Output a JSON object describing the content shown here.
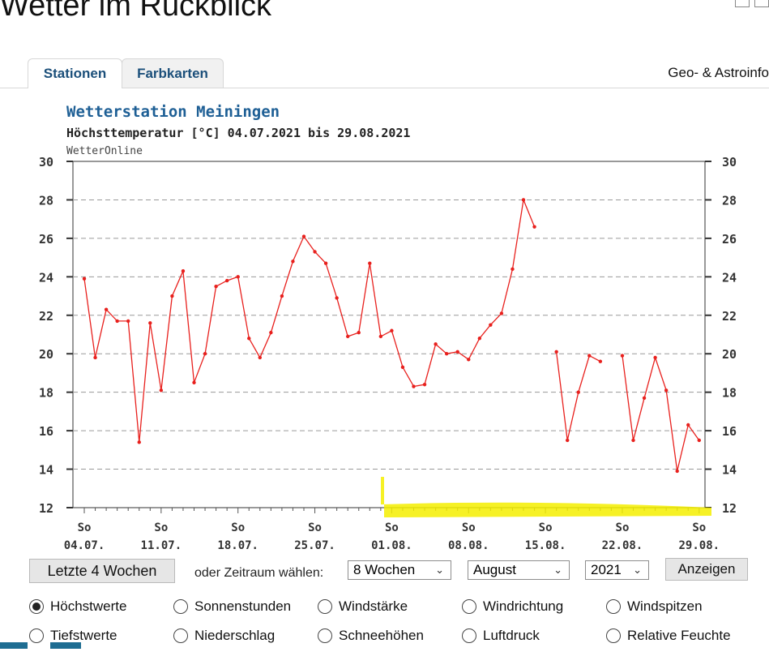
{
  "page": {
    "title": "Wetter im Rückblick"
  },
  "tabs": [
    {
      "label": "Stationen",
      "active": true
    },
    {
      "label": "Farbkarten",
      "active": false
    }
  ],
  "tab_right": "Geo- & Astroinfo",
  "chart_header": {
    "title": "Wetterstation Meiningen",
    "subtitle": "Höchsttemperatur [°C] 04.07.2021 bis 29.08.2021",
    "source": "WetterOnline"
  },
  "chart_data": {
    "type": "line",
    "title": "Wetterstation Meiningen",
    "subtitle": "Höchsttemperatur [°C] 04.07.2021 bis 29.08.2021",
    "ylim": [
      12,
      30
    ],
    "yticks": [
      12,
      14,
      16,
      18,
      20,
      22,
      24,
      26,
      28,
      30
    ],
    "grid": true,
    "xtick_top": [
      "So",
      "So",
      "So",
      "So",
      "So",
      "So",
      "So",
      "So",
      "So"
    ],
    "xtick_bottom": [
      "04.07.",
      "11.07.",
      "18.07.",
      "25.07.",
      "01.08.",
      "08.08.",
      "15.08.",
      "22.08.",
      "29.08."
    ],
    "color": "#e8201d",
    "series": [
      {
        "x": [
          "04.07.",
          "05.07.",
          "06.07.",
          "07.07.",
          "08.07.",
          "09.07.",
          "10.07.",
          "11.07.",
          "12.07.",
          "13.07.",
          "14.07.",
          "15.07.",
          "16.07.",
          "17.07.",
          "18.07.",
          "19.07.",
          "20.07.",
          "21.07.",
          "22.07.",
          "23.07.",
          "24.07.",
          "25.07.",
          "26.07.",
          "27.07.",
          "28.07.",
          "29.07.",
          "30.07.",
          "31.07.",
          "01.08.",
          "02.08.",
          "03.08.",
          "04.08.",
          "05.08.",
          "06.08.",
          "07.08.",
          "08.08.",
          "09.08.",
          "10.08.",
          "11.08.",
          "12.08.",
          "13.08.",
          "14.08.",
          "15.08.",
          "16.08.",
          "17.08.",
          "18.08.",
          "19.08.",
          "20.08.",
          "21.08.",
          "22.08.",
          "23.08.",
          "24.08.",
          "25.08.",
          "26.08.",
          "27.08.",
          "28.08.",
          "29.08."
        ],
        "values": [
          23.9,
          19.8,
          22.3,
          21.7,
          21.7,
          15.4,
          21.6,
          18.1,
          23.0,
          24.3,
          18.5,
          20.0,
          23.5,
          23.8,
          24.0,
          20.8,
          19.8,
          21.1,
          23.0,
          24.8,
          26.1,
          25.3,
          24.7,
          22.9,
          20.9,
          21.1,
          24.7,
          20.9,
          21.2,
          19.3,
          18.3,
          18.4,
          20.5,
          20.0,
          20.1,
          19.7,
          20.8,
          21.5,
          22.1,
          24.4,
          28.0,
          26.6,
          null,
          20.1,
          15.5,
          18.0,
          19.9,
          19.6,
          null,
          19.9,
          15.5,
          17.7,
          19.8,
          18.1,
          13.9,
          16.3,
          15.5
        ]
      }
    ]
  },
  "controls": {
    "last4_label": "Letzte 4 Wochen",
    "period_label": "oder Zeitraum wählen:",
    "weeks_value": "8 Wochen",
    "month_value": "August",
    "year_value": "2021",
    "show_label": "Anzeigen"
  },
  "radio_options": [
    [
      {
        "label": "Höchstwerte",
        "checked": true
      },
      {
        "label": "Sonnenstunden",
        "checked": false
      },
      {
        "label": "Windstärke",
        "checked": false
      },
      {
        "label": "Windrichtung",
        "checked": false
      },
      {
        "label": "Windspitzen",
        "checked": false
      }
    ],
    [
      {
        "label": "Tiefstwerte",
        "checked": false
      },
      {
        "label": "Niederschlag",
        "checked": false
      },
      {
        "label": "Schneehöhen",
        "checked": false
      },
      {
        "label": "Luftdruck",
        "checked": false
      },
      {
        "label": "Relative Feuchte",
        "checked": false
      }
    ]
  ]
}
